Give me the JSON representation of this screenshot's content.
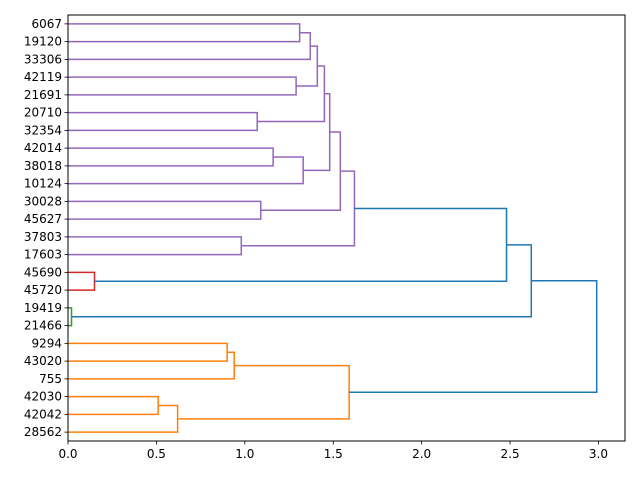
{
  "chart_data": {
    "type": "dendrogram",
    "orientation": "right",
    "xlim": [
      0,
      3.15
    ],
    "xticks": [
      0.0,
      0.5,
      1.0,
      1.5,
      2.0,
      2.5,
      3.0
    ],
    "xtick_labels": [
      "0.0",
      "0.5",
      "1.0",
      "1.5",
      "2.0",
      "2.5",
      "3.0"
    ],
    "leaves": [
      "6067",
      "19120",
      "33306",
      "42119",
      "21691",
      "20710",
      "32354",
      "42014",
      "38018",
      "10124",
      "30028",
      "45627",
      "37803",
      "17603",
      "45690",
      "45720",
      "19419",
      "21466",
      "9294",
      "43020",
      "755",
      "42030",
      "42042",
      "28562"
    ],
    "colors": {
      "purple": "#9467bd",
      "red": "#d62728",
      "green": "#2ca02c",
      "orange": "#ff7f0e",
      "blue": "#1f77b4"
    },
    "links": [
      {
        "id": "A",
        "left": 0,
        "right": 1,
        "height": 1.31,
        "color": "purple"
      },
      {
        "id": "B",
        "left": "A",
        "right": 2,
        "height": 1.37,
        "color": "purple"
      },
      {
        "id": "C",
        "left": 3,
        "right": 4,
        "height": 1.29,
        "color": "purple"
      },
      {
        "id": "D",
        "left": "B",
        "right": "C",
        "height": 1.41,
        "color": "purple"
      },
      {
        "id": "E",
        "left": 5,
        "right": 6,
        "height": 1.07,
        "color": "purple"
      },
      {
        "id": "F",
        "left": "D",
        "right": "E",
        "height": 1.45,
        "color": "purple"
      },
      {
        "id": "G",
        "left": 7,
        "right": 8,
        "height": 1.16,
        "color": "purple"
      },
      {
        "id": "H",
        "left": "G",
        "right": 9,
        "height": 1.33,
        "color": "purple"
      },
      {
        "id": "I",
        "left": "F",
        "right": "H",
        "height": 1.48,
        "color": "purple"
      },
      {
        "id": "J",
        "left": 10,
        "right": 11,
        "height": 1.09,
        "color": "purple"
      },
      {
        "id": "K",
        "left": "I",
        "right": "J",
        "height": 1.54,
        "color": "purple"
      },
      {
        "id": "L",
        "left": 12,
        "right": 13,
        "height": 0.98,
        "color": "purple"
      },
      {
        "id": "M",
        "left": "K",
        "right": "L",
        "height": 1.62,
        "color": "purple"
      },
      {
        "id": "N",
        "left": 14,
        "right": 15,
        "height": 0.15,
        "color": "red"
      },
      {
        "id": "O",
        "left": "M",
        "right": "N",
        "height": 2.48,
        "color": "blue"
      },
      {
        "id": "P",
        "left": 16,
        "right": 17,
        "height": 0.02,
        "color": "green"
      },
      {
        "id": "Q",
        "left": "O",
        "right": "P",
        "height": 2.62,
        "color": "blue"
      },
      {
        "id": "R",
        "left": 18,
        "right": 19,
        "height": 0.9,
        "color": "orange"
      },
      {
        "id": "S",
        "left": "R",
        "right": 20,
        "height": 0.94,
        "color": "orange"
      },
      {
        "id": "T",
        "left": 21,
        "right": 22,
        "height": 0.51,
        "color": "orange"
      },
      {
        "id": "U",
        "left": "T",
        "right": 23,
        "height": 0.62,
        "color": "orange"
      },
      {
        "id": "V",
        "left": "S",
        "right": "U",
        "height": 1.59,
        "color": "orange"
      },
      {
        "id": "W",
        "left": "Q",
        "right": "V",
        "height": 2.99,
        "color": "blue"
      }
    ]
  }
}
